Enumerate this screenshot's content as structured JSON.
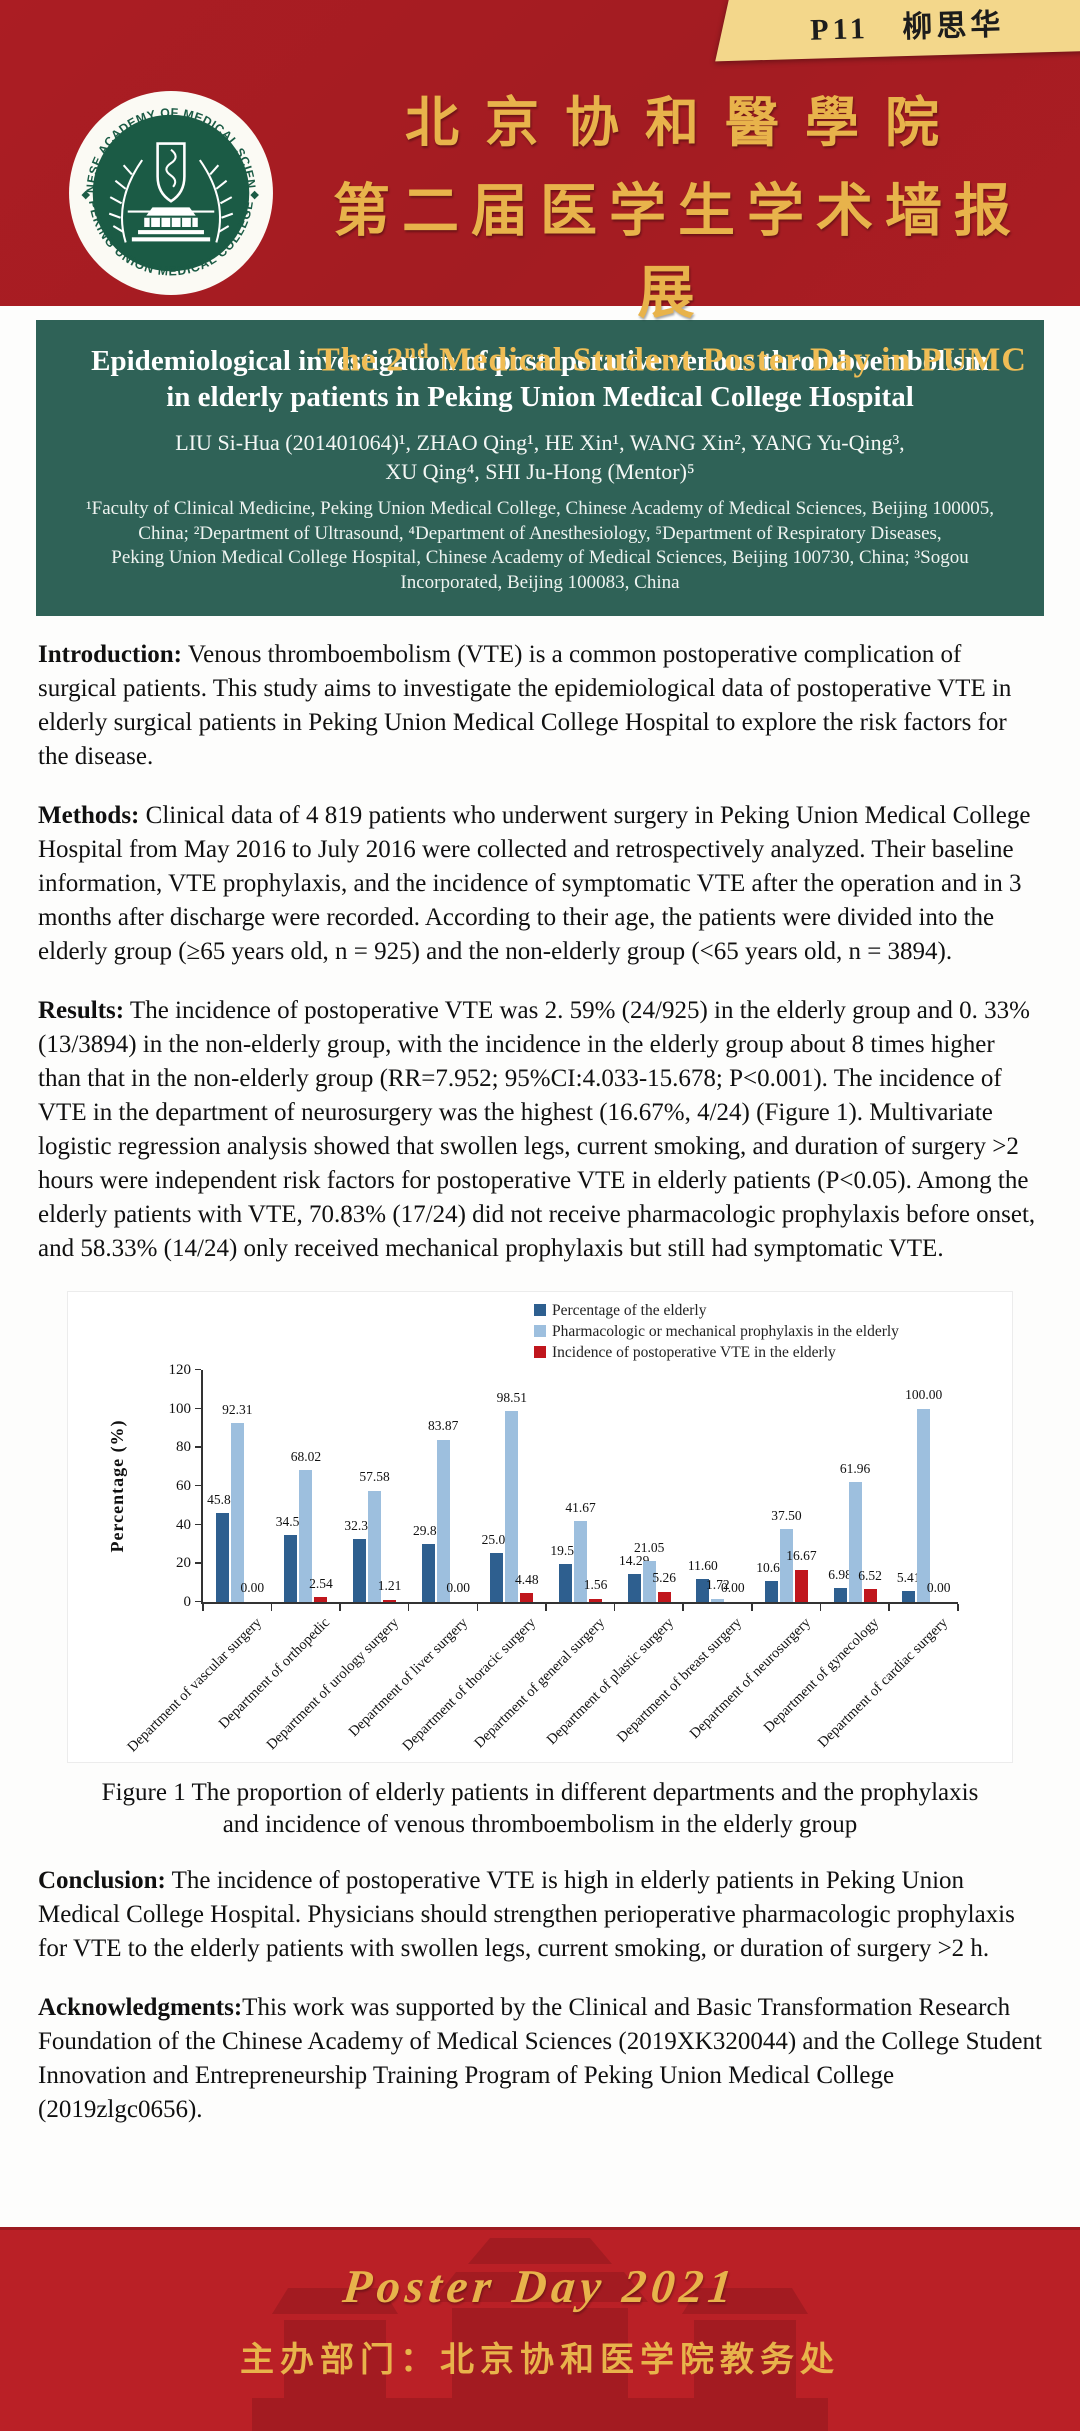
{
  "badge": {
    "text": "P11 柳思华"
  },
  "header": {
    "logo_top_text": "CHINESE ACADEMY OF MEDICAL SCIENCES",
    "logo_bottom_text": "PEKING UNION MEDICAL COLLEGE",
    "title_cn_line1": "北京协和醫學院",
    "title_cn_line2": "第二届医学生学术墙报展",
    "subtitle_en_pre": "The 2",
    "subtitle_en_sup": "nd",
    "subtitle_en_post": " Medical Student Poster Day in PUMC"
  },
  "title_banner": {
    "title_line1": "Epidemiological investigation of postoperative venous thromboembolism",
    "title_line2": "in elderly patients in Peking Union Medical College Hospital",
    "authors_line1": "LIU Si-Hua (201401064)¹, ZHAO Qing¹, HE Xin¹, WANG Xin², YANG Yu-Qing³,",
    "authors_line2": "XU Qing⁴, SHI Ju-Hong (Mentor)⁵",
    "affiliation_lines": [
      "¹Faculty of Clinical Medicine, Peking Union Medical College, Chinese Academy of Medical Sciences,  Beijing 100005,",
      "China; ²Department of Ultrasound, ⁴Department of Anesthesiology, ⁵Department of Respiratory Diseases,",
      "Peking Union Medical College Hospital, Chinese Academy of Medical Sciences, Beijing 100730, China; ³Sogou",
      "Incorporated, Beijing 100083, China"
    ]
  },
  "sections": {
    "introduction": {
      "label": "Introduction:",
      "text": "Venous thromboembolism (VTE) is a common postoperative complication of surgical patients. This study aims to investigate the epidemiological data of postoperative VTE in elderly surgical patients in Peking Union Medical College Hospital to explore the risk factors for the disease."
    },
    "methods": {
      "label": "Methods:",
      "text": "Clinical data of 4 819 patients who underwent surgery in Peking Union Medical College Hospital from May 2016 to July 2016 were collected and retrospectively analyzed. Their baseline information, VTE prophylaxis, and the incidence of symptomatic VTE after the operation and in 3 months after discharge were recorded. According to their age, the patients were divided into the elderly group (≥65 years old, n = 925) and the non-elderly group (<65 years old, n = 3894)."
    },
    "results": {
      "label": "Results:",
      "text": "The incidence of postoperative VTE was 2. 59% (24/925) in the elderly group and 0. 33% (13/3894) in the non-elderly group, with the incidence in the elderly group about 8 times higher than that in the non-elderly group (RR=7.952; 95%CI:4.033-15.678; P<0.001). The incidence of VTE in the department of neurosurgery was the highest (16.67%, 4/24) (Figure 1). Multivariate logistic regression analysis showed that swollen legs, current smoking, and duration of surgery >2 hours were independent risk factors for postoperative VTE in elderly patients (P<0.05). Among the elderly patients with VTE, 70.83% (17/24) did not receive pharmacologic prophylaxis before onset, and 58.33% (14/24) only received mechanical prophylaxis but still had symptomatic VTE."
    },
    "conclusion": {
      "label": "Conclusion:",
      "text": "The incidence of postoperative VTE is high in elderly patients in Peking Union Medical College Hospital. Physicians should strengthen perioperative pharmacologic prophylaxis for VTE to the elderly patients with swollen legs, current smoking, or duration of surgery >2 h."
    },
    "acknowledgments": {
      "label": "Acknowledgments:",
      "text": "This work was supported by the Clinical and Basic Transformation Research Foundation of the Chinese Academy of Medical Sciences (2019XK320044) and the College Student Innovation and Entrepreneurship Training Program of Peking Union Medical College (2019zlgc0656)."
    }
  },
  "figure": {
    "caption_line1": "Figure 1 The proportion of elderly patients in different departments and the prophylaxis",
    "caption_line2": "and incidence of venous thromboembolism in the elderly group"
  },
  "chart_data": {
    "type": "bar",
    "title": "",
    "xlabel": "",
    "ylabel": "Percentage (%)",
    "ylim": [
      0,
      120
    ],
    "yticks": [
      0,
      20,
      40,
      60,
      80,
      100,
      120
    ],
    "grid": false,
    "legend_position": "top-right",
    "categories": [
      "Department of vascular surgery",
      "Department of orthopedic",
      "Department of urology surgery",
      "Department of liver surgery",
      "Department of thoracic surgery",
      "Department of general surgery",
      "Department of plastic surgery",
      "Department of breast surgery",
      "Department of neurosurgery",
      "Department of gynecology",
      "Department of cardiac surgery"
    ],
    "series": [
      {
        "name": "Percentage of the elderly",
        "color": "#2e5f8f",
        "values": [
          45.88,
          34.5,
          32.35,
          29.81,
          25.09,
          19.53,
          14.29,
          11.6,
          10.62,
          6.98,
          5.41
        ]
      },
      {
        "name": "Pharmacologic or mechanical prophylaxis in the elderly",
        "color": "#9dbfde",
        "values": [
          92.31,
          68.02,
          57.58,
          83.87,
          98.51,
          41.67,
          21.05,
          1.72,
          37.5,
          61.96,
          100.0
        ]
      },
      {
        "name": "Incidence of postoperative VTE in the elderly",
        "color": "#c0161d",
        "values": [
          0.0,
          2.54,
          1.21,
          0.0,
          4.48,
          1.56,
          5.26,
          0.0,
          16.67,
          6.52,
          0.0
        ]
      }
    ]
  },
  "footer": {
    "script_text": "Poster Day 2021",
    "organizer": "主办部门：北京协和医学院教务处"
  },
  "colors": {
    "header_red": "#ab1d23",
    "footer_red": "#ba2026",
    "building_red": "#9c1a20",
    "banner_teal": "#2f6257",
    "gold": "#e8b34b",
    "badge_bg": "#f3d78b",
    "logo_green": "#1b5b45"
  }
}
